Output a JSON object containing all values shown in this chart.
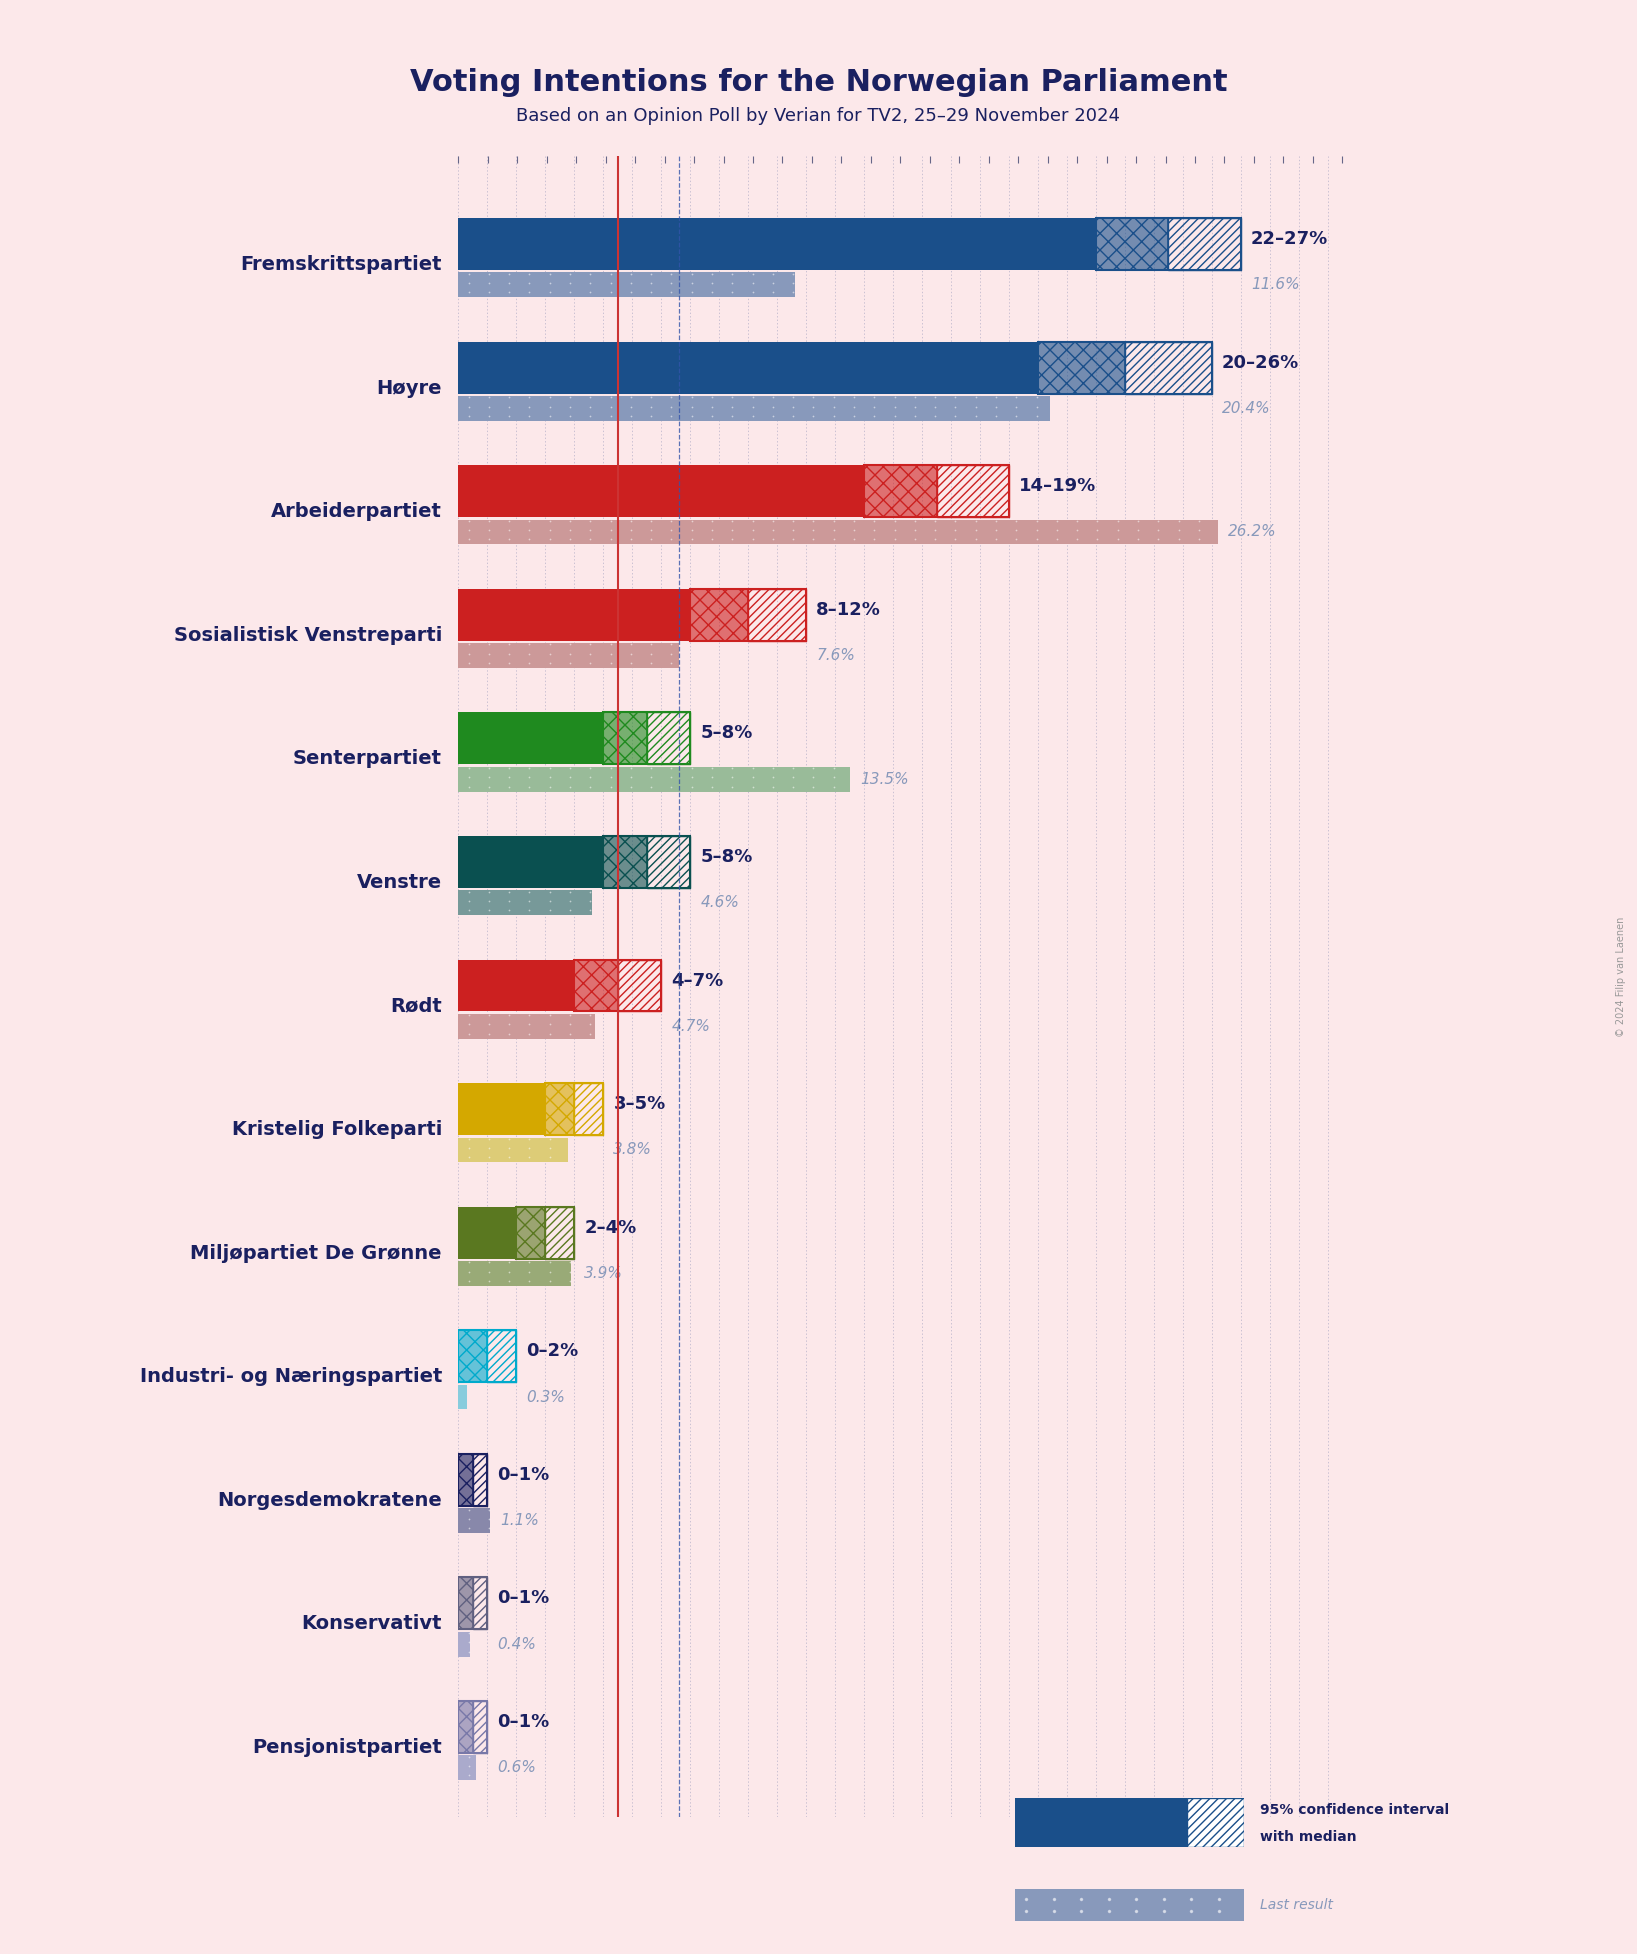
{
  "title": "Voting Intentions for the Norwegian Parliament",
  "subtitle": "Based on an Opinion Poll by Verian for TV2, 25–29 November 2024",
  "copyright": "© 2024 Filip van Laenen",
  "background_color": "#fce8ea",
  "parties": [
    "Fremskrittspartiet",
    "Høyre",
    "Arbeiderpartiet",
    "Sosialistisk Venstreparti",
    "Senterpartiet",
    "Venstre",
    "Rødt",
    "Kristelig Folkeparti",
    "Miljøpartiet De Grønne",
    "Industri- og Næringspartiet",
    "Norgesdemokratene",
    "Konservativt",
    "Pensjonistpartiet"
  ],
  "ci_low": [
    22,
    20,
    14,
    8,
    5,
    5,
    4,
    3,
    2,
    0,
    0,
    0,
    0
  ],
  "ci_high": [
    27,
    26,
    19,
    12,
    8,
    8,
    7,
    5,
    4,
    2,
    1,
    1,
    1
  ],
  "last_result": [
    11.6,
    20.4,
    26.2,
    7.6,
    13.5,
    4.6,
    4.7,
    3.8,
    3.9,
    0.3,
    1.1,
    0.4,
    0.6
  ],
  "labels": [
    "22–27%",
    "20–26%",
    "14–19%",
    "8–12%",
    "5–8%",
    "5–8%",
    "4–7%",
    "3–5%",
    "2–4%",
    "0–2%",
    "0–1%",
    "0–1%",
    "0–1%"
  ],
  "last_labels": [
    "11.6%",
    "20.4%",
    "26.2%",
    "7.6%",
    "13.5%",
    "4.6%",
    "4.7%",
    "3.8%",
    "3.9%",
    "0.3%",
    "1.1%",
    "0.4%",
    "0.6%"
  ],
  "bar_colors": [
    "#1a4f8a",
    "#1a4f8a",
    "#cc2020",
    "#cc2020",
    "#1f8a1f",
    "#0a5050",
    "#cc2020",
    "#d4a800",
    "#5a7820",
    "#00aacc",
    "#1a2060",
    "#606080",
    "#7878a8"
  ],
  "last_colors": [
    "#8899bb",
    "#8899bb",
    "#cc9999",
    "#cc9999",
    "#99bb99",
    "#779999",
    "#cc9999",
    "#ddcc77",
    "#99aa77",
    "#88ccdd",
    "#8888aa",
    "#aaaacc",
    "#aaaacc"
  ],
  "red_line_x": 5.5,
  "blue_line_x": 7.6,
  "xmax": 30,
  "label_fontsize": 14,
  "ci_label_fontsize": 13,
  "last_label_fontsize": 11,
  "title_fontsize": 22,
  "subtitle_fontsize": 13
}
